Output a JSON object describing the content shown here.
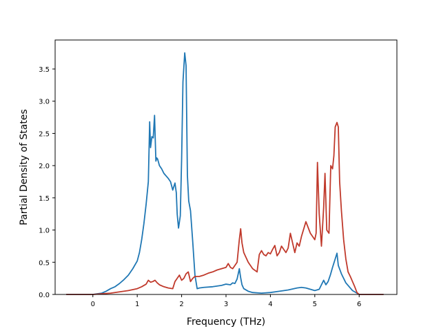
{
  "chart_data": {
    "type": "line",
    "xlabel": "Frequency (THz)",
    "ylabel": "Partial Density of States",
    "xlim": [
      -0.85,
      6.85
    ],
    "ylim": [
      0.0,
      3.95
    ],
    "xticks": [
      "0",
      "1",
      "2",
      "3",
      "4",
      "5",
      "6"
    ],
    "yticks": [
      "0.0",
      "0.5",
      "1.0",
      "1.5",
      "2.0",
      "2.5",
      "3.0",
      "3.5"
    ],
    "grid": false,
    "legend": "none",
    "series": [
      {
        "color": "#1f77b4",
        "x": [
          -0.6,
          0.0,
          0.1,
          0.2,
          0.3,
          0.4,
          0.5,
          0.6,
          0.7,
          0.8,
          0.9,
          1.0,
          1.05,
          1.1,
          1.15,
          1.2,
          1.25,
          1.28,
          1.3,
          1.33,
          1.36,
          1.39,
          1.42,
          1.44,
          1.46,
          1.5,
          1.55,
          1.6,
          1.7,
          1.75,
          1.8,
          1.85,
          1.88,
          1.9,
          1.93,
          1.97,
          2.0,
          2.03,
          2.07,
          2.1,
          2.13,
          2.16,
          2.2,
          2.25,
          2.3,
          2.35,
          2.4,
          2.5,
          2.7,
          2.9,
          3.0,
          3.1,
          3.15,
          3.2,
          3.25,
          3.3,
          3.33,
          3.36,
          3.4,
          3.5,
          3.6,
          3.8,
          4.0,
          4.2,
          4.4,
          4.6,
          4.7,
          4.8,
          4.9,
          5.0,
          5.1,
          5.2,
          5.25,
          5.3,
          5.35,
          5.4,
          5.45,
          5.5,
          5.53,
          5.6,
          5.7,
          5.8,
          5.85,
          5.95,
          6.0,
          6.55
        ],
        "y": [
          0.0,
          0.0,
          0.01,
          0.02,
          0.05,
          0.09,
          0.12,
          0.17,
          0.23,
          0.3,
          0.4,
          0.52,
          0.65,
          0.85,
          1.1,
          1.4,
          1.75,
          2.68,
          2.28,
          2.45,
          2.43,
          2.78,
          2.07,
          2.12,
          2.1,
          2.0,
          1.95,
          1.88,
          1.8,
          1.75,
          1.62,
          1.73,
          1.58,
          1.25,
          1.03,
          1.22,
          2.1,
          3.3,
          3.75,
          3.55,
          1.85,
          1.45,
          1.3,
          0.82,
          0.3,
          0.09,
          0.1,
          0.11,
          0.12,
          0.14,
          0.16,
          0.15,
          0.18,
          0.17,
          0.24,
          0.4,
          0.26,
          0.15,
          0.09,
          0.05,
          0.03,
          0.02,
          0.03,
          0.05,
          0.07,
          0.1,
          0.11,
          0.1,
          0.08,
          0.06,
          0.08,
          0.22,
          0.15,
          0.2,
          0.3,
          0.42,
          0.53,
          0.64,
          0.45,
          0.32,
          0.18,
          0.1,
          0.06,
          0.02,
          0.0,
          0.0
        ]
      },
      {
        "color": "#c0392b",
        "x": [
          -0.6,
          0.0,
          0.2,
          0.4,
          0.6,
          0.8,
          1.0,
          1.1,
          1.2,
          1.25,
          1.3,
          1.35,
          1.4,
          1.45,
          1.5,
          1.6,
          1.7,
          1.8,
          1.85,
          1.9,
          1.95,
          2.0,
          2.05,
          2.1,
          2.15,
          2.2,
          2.25,
          2.3,
          2.4,
          2.5,
          2.6,
          2.7,
          2.8,
          2.9,
          3.0,
          3.05,
          3.1,
          3.15,
          3.2,
          3.25,
          3.3,
          3.33,
          3.36,
          3.4,
          3.5,
          3.6,
          3.7,
          3.75,
          3.8,
          3.85,
          3.9,
          3.95,
          4.0,
          4.05,
          4.1,
          4.15,
          4.2,
          4.25,
          4.3,
          4.35,
          4.4,
          4.45,
          4.5,
          4.55,
          4.6,
          4.65,
          4.7,
          4.8,
          4.9,
          4.95,
          5.0,
          5.03,
          5.06,
          5.1,
          5.15,
          5.2,
          5.23,
          5.27,
          5.32,
          5.36,
          5.4,
          5.43,
          5.46,
          5.5,
          5.53,
          5.56,
          5.6,
          5.65,
          5.7,
          5.75,
          5.8,
          5.85,
          5.9,
          5.95,
          6.0,
          6.1,
          6.55
        ],
        "y": [
          0.0,
          0.0,
          0.01,
          0.02,
          0.04,
          0.06,
          0.09,
          0.12,
          0.16,
          0.22,
          0.19,
          0.2,
          0.22,
          0.18,
          0.15,
          0.12,
          0.1,
          0.09,
          0.2,
          0.25,
          0.3,
          0.22,
          0.25,
          0.32,
          0.35,
          0.2,
          0.25,
          0.28,
          0.28,
          0.3,
          0.33,
          0.35,
          0.38,
          0.4,
          0.42,
          0.48,
          0.42,
          0.4,
          0.45,
          0.5,
          0.85,
          1.02,
          0.8,
          0.65,
          0.5,
          0.4,
          0.35,
          0.62,
          0.68,
          0.62,
          0.6,
          0.65,
          0.63,
          0.7,
          0.76,
          0.6,
          0.65,
          0.75,
          0.7,
          0.65,
          0.72,
          0.95,
          0.8,
          0.65,
          0.8,
          0.75,
          0.9,
          1.13,
          0.95,
          0.9,
          0.85,
          0.95,
          2.05,
          1.25,
          0.75,
          1.35,
          1.88,
          1.0,
          0.95,
          2.0,
          1.95,
          2.15,
          2.6,
          2.67,
          2.6,
          1.75,
          1.3,
          0.85,
          0.55,
          0.35,
          0.28,
          0.2,
          0.12,
          0.03,
          0.0,
          0.0,
          0.0
        ]
      }
    ]
  }
}
